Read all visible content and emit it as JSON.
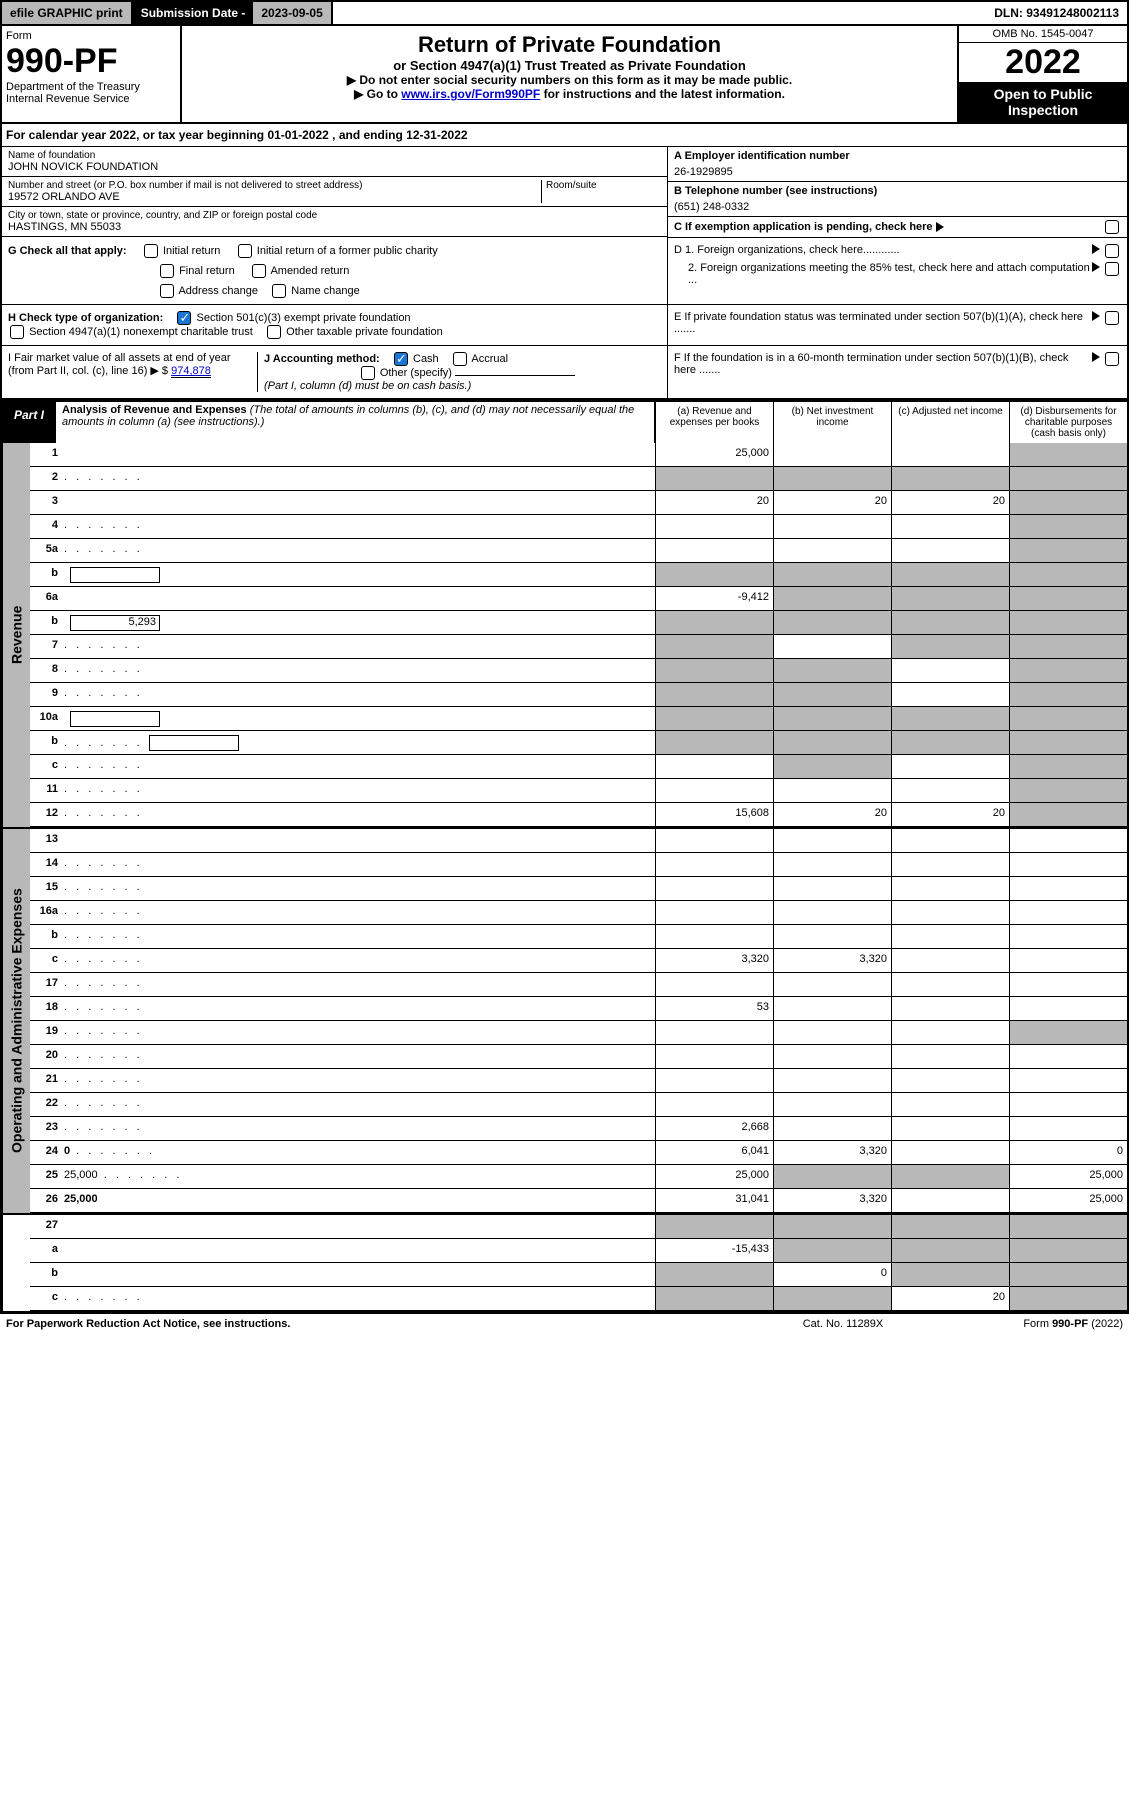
{
  "topbar": {
    "efile": "efile GRAPHIC print",
    "subdate_label": "Submission Date - ",
    "subdate": "2023-09-05",
    "dln": "DLN: 93491248002113"
  },
  "header": {
    "form_label": "Form",
    "form_number": "990-PF",
    "dept": "Department of the Treasury",
    "irs": "Internal Revenue Service",
    "title": "Return of Private Foundation",
    "subtitle": "or Section 4947(a)(1) Trust Treated as Private Foundation",
    "note1": "▶ Do not enter social security numbers on this form as it may be made public.",
    "note2_pre": "▶ Go to ",
    "note2_link": "www.irs.gov/Form990PF",
    "note2_post": " for instructions and the latest information.",
    "omb": "OMB No. 1545-0047",
    "year": "2022",
    "open_public": "Open to Public Inspection"
  },
  "cal_year": "For calendar year 2022, or tax year beginning 01-01-2022  , and ending 12-31-2022",
  "found": {
    "name_label": "Name of foundation",
    "name": "JOHN NOVICK FOUNDATION",
    "addr_label": "Number and street (or P.O. box number if mail is not delivered to street address)",
    "addr": "19572 ORLANDO AVE",
    "room_label": "Room/suite",
    "city_label": "City or town, state or province, country, and ZIP or foreign postal code",
    "city": "HASTINGS, MN  55033",
    "empid_label": "A Employer identification number",
    "empid": "26-1929895",
    "tel_label": "B Telephone number (see instructions)",
    "tel": "(651) 248-0332",
    "c_label": "C If exemption application is pending, check here",
    "d1": "D 1. Foreign organizations, check here............",
    "d2": "2. Foreign organizations meeting the 85% test, check here and attach computation ...",
    "e": "E  If private foundation status was terminated under section 507(b)(1)(A), check here .......",
    "f": "F  If the foundation is in a 60-month termination under section 507(b)(1)(B), check here .......",
    "g_label": "G Check all that apply:",
    "g_opts": [
      "Initial return",
      "Initial return of a former public charity",
      "Final return",
      "Amended return",
      "Address change",
      "Name change"
    ],
    "h_label": "H Check type of organization:",
    "h_opts": [
      "Section 501(c)(3) exempt private foundation",
      "Section 4947(a)(1) nonexempt charitable trust",
      "Other taxable private foundation"
    ],
    "i_label": "I Fair market value of all assets at end of year (from Part II, col. (c), line 16) ▶ $",
    "i_val": "974,878",
    "j_label": "J Accounting method:",
    "j_cash": "Cash",
    "j_accrual": "Accrual",
    "j_other": "Other (specify)",
    "j_note": "(Part I, column (d) must be on cash basis.)"
  },
  "part1": {
    "label": "Part I",
    "title": "Analysis of Revenue and Expenses",
    "title_note": "(The total of amounts in columns (b), (c), and (d) may not necessarily equal the amounts in column (a) (see instructions).)",
    "col_a": "(a)  Revenue and expenses per books",
    "col_b": "(b)  Net investment income",
    "col_c": "(c)  Adjusted net income",
    "col_d": "(d)  Disbursements for charitable purposes (cash basis only)"
  },
  "sides": {
    "revenue": "Revenue",
    "opex": "Operating and Administrative Expenses"
  },
  "rows": [
    {
      "n": "1",
      "d": "",
      "a": "25,000",
      "b": "",
      "c": "",
      "grey": [
        "d"
      ]
    },
    {
      "n": "2",
      "d": "",
      "a": "",
      "b": "",
      "c": "",
      "grey": [
        "a",
        "b",
        "c",
        "d"
      ],
      "dotted": true
    },
    {
      "n": "3",
      "d": "",
      "a": "20",
      "b": "20",
      "c": "20",
      "grey": [
        "d"
      ]
    },
    {
      "n": "4",
      "d": "",
      "a": "",
      "b": "",
      "c": "",
      "grey": [
        "d"
      ],
      "dotted": true
    },
    {
      "n": "5a",
      "d": "",
      "a": "",
      "b": "",
      "c": "",
      "grey": [
        "d"
      ],
      "dotted": true
    },
    {
      "n": "b",
      "d": "",
      "a": "",
      "b": "",
      "c": "",
      "grey": [
        "a",
        "b",
        "c",
        "d"
      ],
      "inline": true
    },
    {
      "n": "6a",
      "d": "",
      "a": "-9,412",
      "b": "",
      "c": "",
      "grey": [
        "b",
        "c",
        "d"
      ]
    },
    {
      "n": "b",
      "d": "",
      "a": "",
      "b": "",
      "c": "",
      "grey": [
        "a",
        "b",
        "c",
        "d"
      ],
      "inline": true,
      "inline_val": "5,293"
    },
    {
      "n": "7",
      "d": "",
      "a": "",
      "b": "",
      "c": "",
      "grey": [
        "a",
        "c",
        "d"
      ],
      "dotted": true
    },
    {
      "n": "8",
      "d": "",
      "a": "",
      "b": "",
      "c": "",
      "grey": [
        "a",
        "b",
        "d"
      ],
      "dotted": true
    },
    {
      "n": "9",
      "d": "",
      "a": "",
      "b": "",
      "c": "",
      "grey": [
        "a",
        "b",
        "d"
      ],
      "dotted": true
    },
    {
      "n": "10a",
      "d": "",
      "a": "",
      "b": "",
      "c": "",
      "grey": [
        "a",
        "b",
        "c",
        "d"
      ],
      "inline": true
    },
    {
      "n": "b",
      "d": "",
      "a": "",
      "b": "",
      "c": "",
      "grey": [
        "a",
        "b",
        "c",
        "d"
      ],
      "inline": true,
      "dotted": true
    },
    {
      "n": "c",
      "d": "",
      "a": "",
      "b": "",
      "c": "",
      "grey": [
        "b",
        "d"
      ],
      "dotted": true
    },
    {
      "n": "11",
      "d": "",
      "a": "",
      "b": "",
      "c": "",
      "grey": [
        "d"
      ],
      "dotted": true
    },
    {
      "n": "12",
      "d": "",
      "a": "15,608",
      "b": "20",
      "c": "20",
      "grey": [
        "d"
      ],
      "bold": true,
      "dotted": true
    }
  ],
  "rows2": [
    {
      "n": "13",
      "d": "",
      "a": "",
      "b": "",
      "c": ""
    },
    {
      "n": "14",
      "d": "",
      "a": "",
      "b": "",
      "c": "",
      "dotted": true
    },
    {
      "n": "15",
      "d": "",
      "a": "",
      "b": "",
      "c": "",
      "dotted": true
    },
    {
      "n": "16a",
      "d": "",
      "a": "",
      "b": "",
      "c": "",
      "dotted": true
    },
    {
      "n": "b",
      "d": "",
      "a": "",
      "b": "",
      "c": "",
      "dotted": true
    },
    {
      "n": "c",
      "d": "",
      "a": "3,320",
      "b": "3,320",
      "c": "",
      "dotted": true
    },
    {
      "n": "17",
      "d": "",
      "a": "",
      "b": "",
      "c": "",
      "dotted": true
    },
    {
      "n": "18",
      "d": "",
      "a": "53",
      "b": "",
      "c": "",
      "dotted": true
    },
    {
      "n": "19",
      "d": "",
      "a": "",
      "b": "",
      "c": "",
      "grey": [
        "d"
      ],
      "dotted": true
    },
    {
      "n": "20",
      "d": "",
      "a": "",
      "b": "",
      "c": "",
      "dotted": true
    },
    {
      "n": "21",
      "d": "",
      "a": "",
      "b": "",
      "c": "",
      "dotted": true
    },
    {
      "n": "22",
      "d": "",
      "a": "",
      "b": "",
      "c": "",
      "dotted": true
    },
    {
      "n": "23",
      "d": "",
      "a": "2,668",
      "b": "",
      "c": "",
      "dotted": true
    },
    {
      "n": "24",
      "d": "0",
      "a": "6,041",
      "b": "3,320",
      "c": "",
      "bold": true,
      "dotted": true
    },
    {
      "n": "25",
      "d": "25,000",
      "a": "25,000",
      "b": "",
      "c": "",
      "grey": [
        "b",
        "c"
      ],
      "dotted": true
    },
    {
      "n": "26",
      "d": "25,000",
      "a": "31,041",
      "b": "3,320",
      "c": "",
      "bold": true
    }
  ],
  "rows3": [
    {
      "n": "27",
      "d": "",
      "a": "",
      "b": "",
      "c": "",
      "grey": [
        "a",
        "b",
        "c",
        "d"
      ]
    },
    {
      "n": "a",
      "d": "",
      "a": "-15,433",
      "b": "",
      "c": "",
      "grey": [
        "b",
        "c",
        "d"
      ],
      "bold": true
    },
    {
      "n": "b",
      "d": "",
      "a": "",
      "b": "0",
      "c": "",
      "grey": [
        "a",
        "c",
        "d"
      ],
      "bold": true
    },
    {
      "n": "c",
      "d": "",
      "a": "",
      "b": "",
      "c": "20",
      "grey": [
        "a",
        "b",
        "d"
      ],
      "bold": true,
      "dotted": true
    }
  ],
  "footer": {
    "left": "For Paperwork Reduction Act Notice, see instructions.",
    "mid": "Cat. No. 11289X",
    "right": "Form 990-PF (2022)"
  }
}
